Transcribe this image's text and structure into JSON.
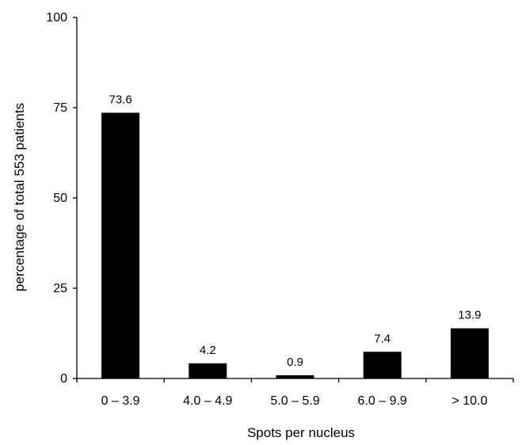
{
  "chart_data": {
    "type": "bar",
    "title": "",
    "xlabel": "Spots per nucleus",
    "ylabel": "percentage of total 553 patients",
    "categories": [
      "0 – 3.9",
      "4.0 – 4.9",
      "5.0 – 5.9",
      "6.0 – 9.9",
      "> 10.0"
    ],
    "values": [
      73.6,
      4.2,
      0.9,
      7.4,
      13.9
    ],
    "data_labels": [
      "73.6",
      "4.2",
      "0.9",
      "7.4",
      "13.9"
    ],
    "ylim": [
      0,
      100
    ],
    "yticks": [
      0,
      25,
      50,
      75,
      100
    ],
    "ytick_labels": [
      "0",
      "25",
      "50",
      "75",
      "100"
    ],
    "grid": false,
    "legend": "none",
    "bar_color": "#000000"
  }
}
